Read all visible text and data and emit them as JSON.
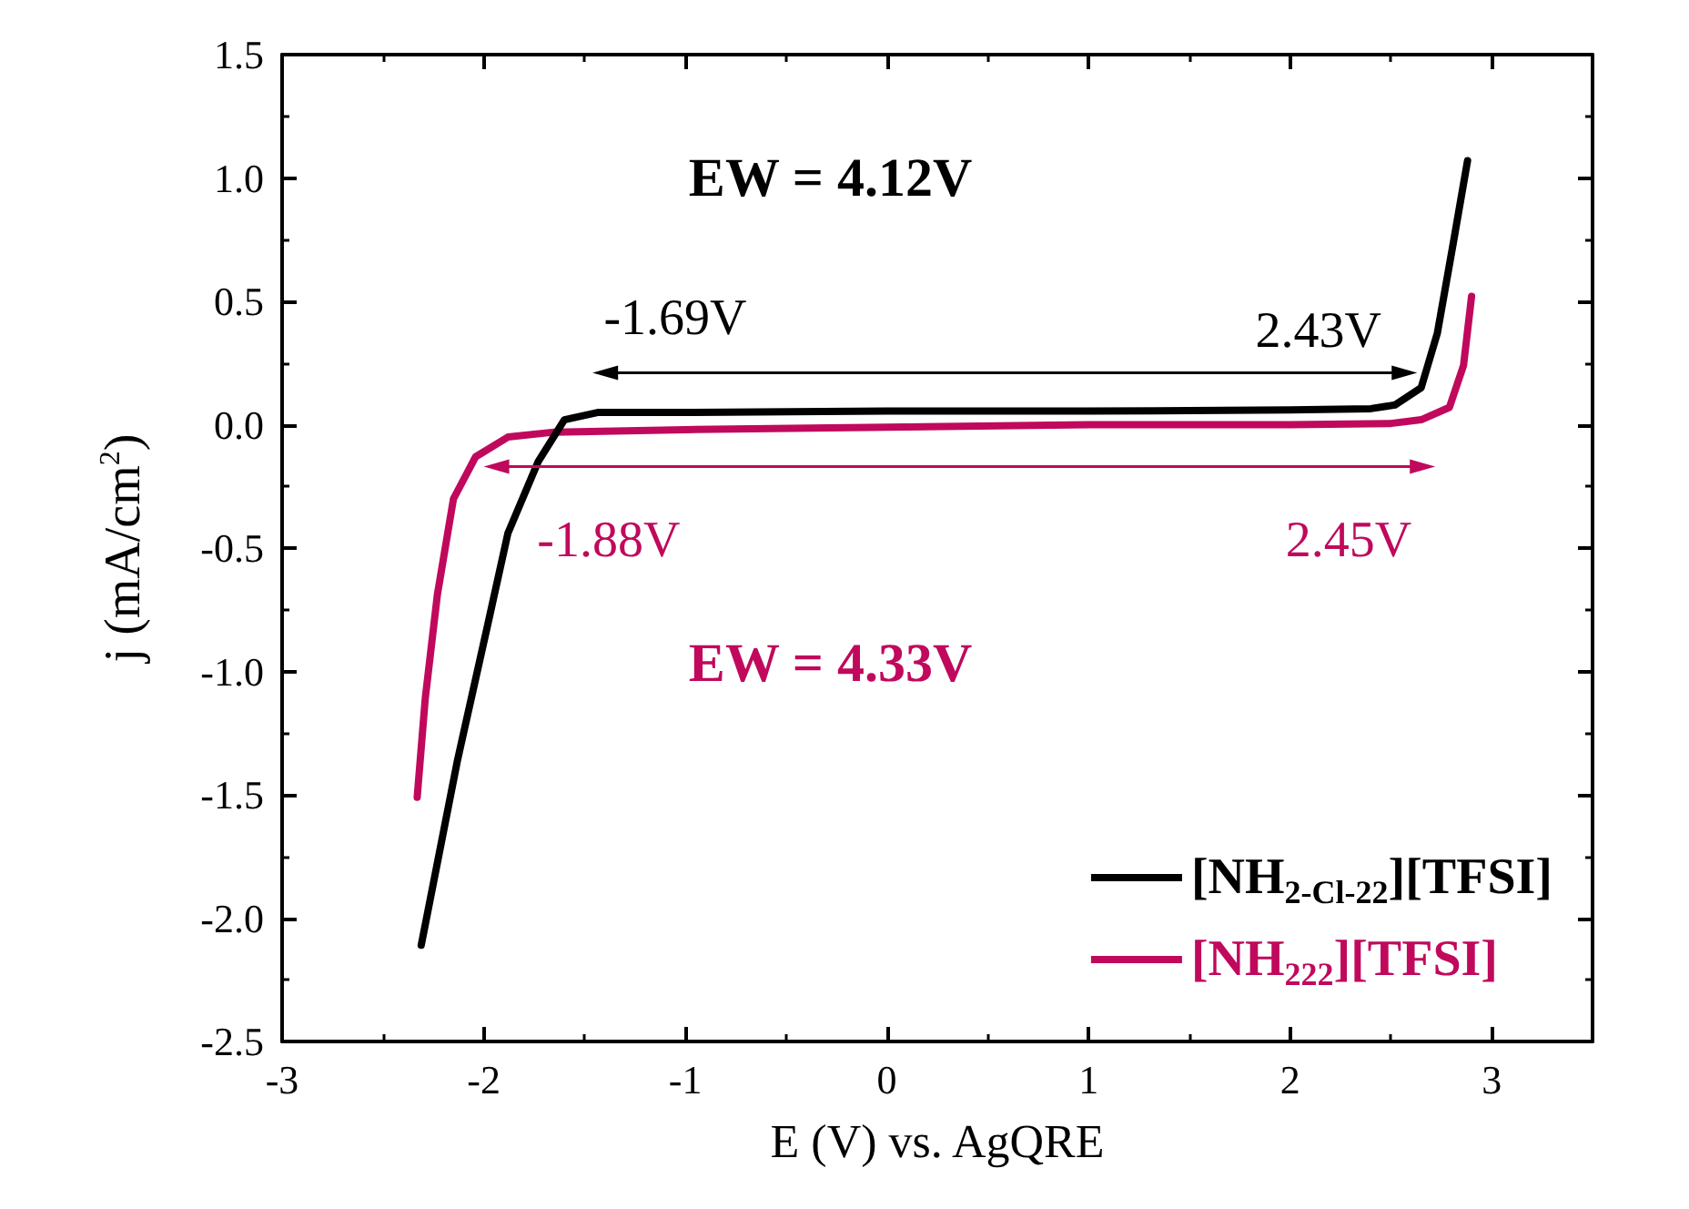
{
  "chart_data": {
    "type": "line",
    "xlabel": "E (V) vs. AgQRE",
    "ylabel": "j (mA/cm$^{2}$)",
    "xlim": [
      -3,
      3.5
    ],
    "xticks": [
      -3,
      -2,
      -1,
      0,
      1,
      2,
      3
    ],
    "ylim": [
      -2.5,
      1.5
    ],
    "yticks": [
      -2.5,
      {
        "value": -2,
        "label": "-2.0"
      },
      -1.5,
      {
        "value": -1,
        "label": "-1.0"
      },
      -0.5,
      {
        "value": 0,
        "label": "0.0"
      },
      0.5,
      {
        "value": 1,
        "label": "1.0"
      },
      1.5
    ],
    "grid": false,
    "legend": "bottom right",
    "marker": "none",
    "line_style": "solid",
    "annotations": [
      "EW = 4.12V",
      "-1.69V",
      "2.43V",
      "-1.88V",
      "2.45V",
      "EW = 4.33V"
    ],
    "series": [
      {
        "name": "[NH$_{2-Cl-22}$][TFSI]",
        "color": "#000000",
        "x": [
          -2.31,
          -2.13,
          -1.98,
          -1.88,
          -1.73,
          -1.6,
          -1.43,
          -1.0,
          0,
          1.0,
          2.0,
          2.4,
          2.52,
          2.65,
          2.73,
          2.81,
          2.88
        ],
        "values": [
          -2.11,
          -1.36,
          -0.81,
          -0.44,
          -0.15,
          0.02,
          0.05,
          0.05,
          0.055,
          0.055,
          0.06,
          0.065,
          0.08,
          0.15,
          0.37,
          0.74,
          1.07
        ]
      },
      {
        "name": "[NH$_{222}$][TFSI]",
        "color": "#c0095c",
        "x": [
          -2.33,
          -2.29,
          -2.23,
          -2.15,
          -2.04,
          -1.88,
          -1.65,
          -1.0,
          0,
          1.0,
          2.0,
          2.5,
          2.65,
          2.79,
          2.86,
          2.9
        ],
        "values": [
          -1.51,
          -1.11,
          -0.69,
          -0.3,
          -0.13,
          -0.05,
          -0.03,
          -0.02,
          -0.01,
          0.0,
          0.0,
          0.005,
          0.02,
          0.07,
          0.24,
          0.52
        ]
      }
    ]
  }
}
